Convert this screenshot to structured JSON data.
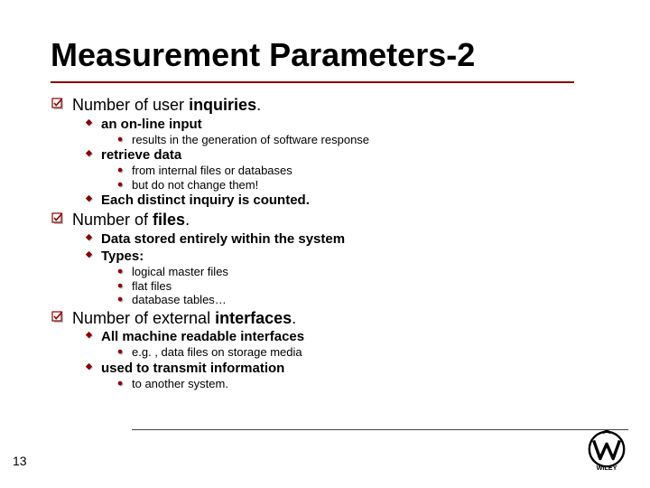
{
  "title": "Measurement Parameters-2",
  "accent_color": "#880000",
  "page_number": "13",
  "sections": [
    {
      "label_html": "Number of user <b>inquiries</b>.",
      "items": [
        {
          "label": "an on-line input",
          "sub": [
            "results in the generation of software response"
          ]
        },
        {
          "label": "retrieve data",
          "sub": [
            "from internal files or databases",
            "but do not change them!"
          ]
        },
        {
          "label": "Each distinct inquiry is counted."
        }
      ]
    },
    {
      "label_html": "Number of <b>files</b>.",
      "items": [
        {
          "label": "Data stored entirely within the system"
        },
        {
          "label": "Types:",
          "sub": [
            "logical master files",
            "flat files",
            "database tables…"
          ]
        }
      ]
    },
    {
      "label_html": "Number of external <b>interfaces</b>.",
      "items": [
        {
          "label": "All machine readable interfaces",
          "sub": [
            "e.g. , data files on storage media"
          ]
        },
        {
          "label": "used to transmit information",
          "sub": [
            "to another system."
          ]
        }
      ]
    }
  ]
}
